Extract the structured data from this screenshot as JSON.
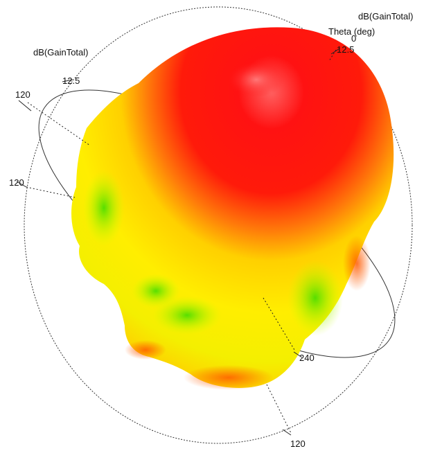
{
  "plot": {
    "axis_title_right": "dB(GainTotal)",
    "axis_title_left": "dB(GainTotal)",
    "theta_title": "Theta (deg)",
    "theta_zero_label": "0",
    "top_tick_label": "12.5",
    "left_tick_label": "12.5",
    "left_120_upper": "120",
    "left_120_lower": "120",
    "bottom_240": "240",
    "bottom_120": "120"
  },
  "colors": {
    "high_gain": "#ff1010",
    "mid_gain": "#ffee00",
    "low_gain": "#44dd00",
    "axis_line": "#222222"
  }
}
